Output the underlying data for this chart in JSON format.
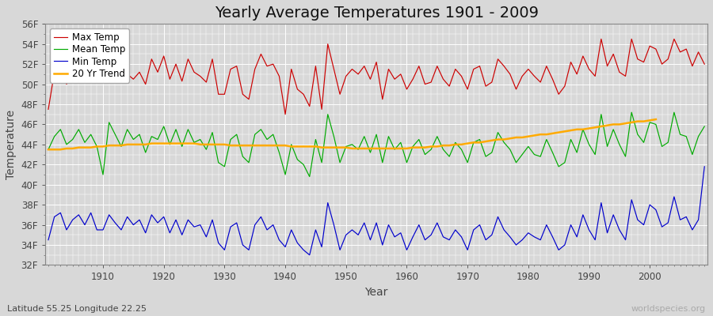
{
  "title": "Yearly Average Temperatures 1901 - 2009",
  "xlabel": "Year",
  "ylabel": "Temperature",
  "lat_lon_label": "Latitude 55.25 Longitude 22.25",
  "watermark": "worldspecies.org",
  "years": [
    1901,
    1902,
    1903,
    1904,
    1905,
    1906,
    1907,
    1908,
    1909,
    1910,
    1911,
    1912,
    1913,
    1914,
    1915,
    1916,
    1917,
    1918,
    1919,
    1920,
    1921,
    1922,
    1923,
    1924,
    1925,
    1926,
    1927,
    1928,
    1929,
    1930,
    1931,
    1932,
    1933,
    1934,
    1935,
    1936,
    1937,
    1938,
    1939,
    1940,
    1941,
    1942,
    1943,
    1944,
    1945,
    1946,
    1947,
    1948,
    1949,
    1950,
    1951,
    1952,
    1953,
    1954,
    1955,
    1956,
    1957,
    1958,
    1959,
    1960,
    1961,
    1962,
    1963,
    1964,
    1965,
    1966,
    1967,
    1968,
    1969,
    1970,
    1971,
    1972,
    1973,
    1974,
    1975,
    1976,
    1977,
    1978,
    1979,
    1980,
    1981,
    1982,
    1983,
    1984,
    1985,
    1986,
    1987,
    1988,
    1989,
    1990,
    1991,
    1992,
    1993,
    1994,
    1995,
    1996,
    1997,
    1998,
    1999,
    2000,
    2001,
    2002,
    2003,
    2004,
    2005,
    2006,
    2007,
    2008,
    2009
  ],
  "max_temp": [
    47.5,
    51.2,
    51.5,
    50.0,
    51.0,
    51.3,
    50.2,
    51.8,
    50.5,
    50.3,
    51.5,
    50.8,
    50.2,
    51.0,
    50.5,
    51.2,
    50.0,
    52.5,
    51.2,
    52.8,
    50.5,
    52.0,
    50.3,
    52.5,
    51.2,
    50.8,
    50.2,
    52.5,
    49.0,
    49.0,
    51.5,
    51.8,
    49.0,
    48.5,
    51.5,
    53.0,
    51.8,
    52.0,
    50.8,
    47.0,
    51.5,
    49.5,
    49.0,
    47.8,
    51.8,
    47.5,
    54.0,
    51.5,
    49.0,
    50.8,
    51.5,
    51.0,
    51.8,
    50.5,
    52.2,
    48.5,
    51.5,
    50.5,
    51.0,
    49.5,
    50.5,
    51.8,
    50.0,
    50.2,
    51.8,
    50.5,
    49.8,
    51.5,
    50.8,
    49.5,
    51.5,
    51.8,
    49.8,
    50.2,
    52.5,
    51.8,
    51.0,
    49.5,
    50.8,
    51.5,
    50.8,
    50.2,
    51.8,
    50.5,
    49.0,
    49.8,
    52.2,
    51.0,
    52.8,
    51.5,
    50.8,
    54.5,
    51.8,
    53.0,
    51.2,
    50.8,
    54.5,
    52.5,
    52.2,
    53.8,
    53.5,
    52.0,
    52.5,
    54.5,
    53.2,
    53.5,
    51.8,
    53.2,
    52.0
  ],
  "mean_temp": [
    43.5,
    44.8,
    45.5,
    44.0,
    44.5,
    45.5,
    44.2,
    45.0,
    43.8,
    41.0,
    46.2,
    45.0,
    43.8,
    45.5,
    44.5,
    45.0,
    43.2,
    44.8,
    44.5,
    45.8,
    44.0,
    45.5,
    43.8,
    45.5,
    44.2,
    44.5,
    43.5,
    45.2,
    42.2,
    41.8,
    44.5,
    45.0,
    42.8,
    42.2,
    45.0,
    45.5,
    44.5,
    45.0,
    43.2,
    41.0,
    44.0,
    42.5,
    42.0,
    40.8,
    44.5,
    42.2,
    47.0,
    44.8,
    42.2,
    43.8,
    44.0,
    43.5,
    44.8,
    43.2,
    45.0,
    42.2,
    44.8,
    43.5,
    44.2,
    42.2,
    43.8,
    44.5,
    43.0,
    43.5,
    44.8,
    43.5,
    42.8,
    44.2,
    43.5,
    42.2,
    44.2,
    44.5,
    42.8,
    43.2,
    45.2,
    44.2,
    43.5,
    42.2,
    43.0,
    43.8,
    43.0,
    42.8,
    44.5,
    43.2,
    41.8,
    42.2,
    44.5,
    43.2,
    45.5,
    44.0,
    43.0,
    47.0,
    43.8,
    45.5,
    44.0,
    42.8,
    47.2,
    45.0,
    44.2,
    46.2,
    46.0,
    43.8,
    44.2,
    47.2,
    45.0,
    44.8,
    43.0,
    44.8,
    45.8
  ],
  "min_temp": [
    34.5,
    36.8,
    37.2,
    35.5,
    36.5,
    37.0,
    36.0,
    37.2,
    35.5,
    35.5,
    37.0,
    36.2,
    35.5,
    36.8,
    36.0,
    36.5,
    35.2,
    37.0,
    36.2,
    36.8,
    35.2,
    36.5,
    35.0,
    36.5,
    35.8,
    36.0,
    34.8,
    36.5,
    34.2,
    33.5,
    35.8,
    36.2,
    34.0,
    33.5,
    36.0,
    36.8,
    35.5,
    36.0,
    34.5,
    33.8,
    35.5,
    34.2,
    33.5,
    33.0,
    35.5,
    33.8,
    38.2,
    36.0,
    33.5,
    35.0,
    35.5,
    35.0,
    36.2,
    34.5,
    36.2,
    34.0,
    36.0,
    34.8,
    35.2,
    33.5,
    34.8,
    36.0,
    34.5,
    35.0,
    36.2,
    34.8,
    34.5,
    35.5,
    34.8,
    33.5,
    35.5,
    36.0,
    34.5,
    35.0,
    36.8,
    35.5,
    34.8,
    34.0,
    34.5,
    35.2,
    34.8,
    34.5,
    36.0,
    34.8,
    33.5,
    34.0,
    36.0,
    34.8,
    37.0,
    35.5,
    34.5,
    38.2,
    35.2,
    37.0,
    35.5,
    34.5,
    38.5,
    36.5,
    36.0,
    38.0,
    37.5,
    35.8,
    36.2,
    38.8,
    36.5,
    36.8,
    35.5,
    36.5,
    41.8
  ],
  "trend_20yr": [
    43.5,
    43.5,
    43.5,
    43.6,
    43.6,
    43.7,
    43.7,
    43.7,
    43.8,
    43.8,
    43.9,
    43.9,
    43.9,
    44.0,
    44.0,
    44.0,
    44.0,
    44.1,
    44.1,
    44.1,
    44.1,
    44.1,
    44.1,
    44.1,
    44.1,
    44.0,
    44.0,
    44.0,
    44.0,
    44.0,
    43.9,
    43.9,
    43.9,
    43.9,
    43.9,
    43.9,
    43.9,
    43.9,
    43.9,
    43.9,
    43.8,
    43.8,
    43.8,
    43.8,
    43.8,
    43.7,
    43.7,
    43.7,
    43.7,
    43.7,
    43.6,
    43.6,
    43.6,
    43.6,
    43.6,
    43.6,
    43.6,
    43.6,
    43.6,
    43.6,
    43.7,
    43.7,
    43.7,
    43.8,
    43.8,
    43.9,
    43.9,
    44.0,
    44.0,
    44.1,
    44.2,
    44.2,
    44.3,
    44.4,
    44.5,
    44.5,
    44.6,
    44.7,
    44.7,
    44.8,
    44.9,
    45.0,
    45.0,
    45.1,
    45.2,
    45.3,
    45.4,
    45.5,
    45.5,
    45.6,
    45.7,
    45.8,
    45.9,
    46.0,
    46.0,
    46.1,
    46.2,
    46.3,
    46.3,
    46.4,
    46.5,
    null,
    null,
    null,
    null,
    null,
    null,
    null,
    null
  ],
  "ylim": [
    32,
    56
  ],
  "yticks": [
    32,
    34,
    36,
    38,
    40,
    42,
    44,
    46,
    48,
    50,
    52,
    54,
    56
  ],
  "ytick_labels": [
    "32F",
    "34F",
    "36F",
    "38F",
    "40F",
    "42F",
    "44F",
    "46F",
    "48F",
    "50F",
    "52F",
    "54F",
    "56F"
  ],
  "xlim_min": 1901,
  "xlim_max": 2009,
  "xticks": [
    1910,
    1920,
    1930,
    1940,
    1950,
    1960,
    1970,
    1980,
    1990,
    2000
  ],
  "bg_color": "#d8d8d8",
  "plot_bg_color": "#d8d8d8",
  "max_color": "#cc0000",
  "mean_color": "#00aa00",
  "min_color": "#0000cc",
  "trend_color": "#ffaa00",
  "grid_color": "#ffffff",
  "title_fontsize": 14,
  "axis_label_fontsize": 10,
  "tick_fontsize": 8.5,
  "legend_fontsize": 8.5
}
